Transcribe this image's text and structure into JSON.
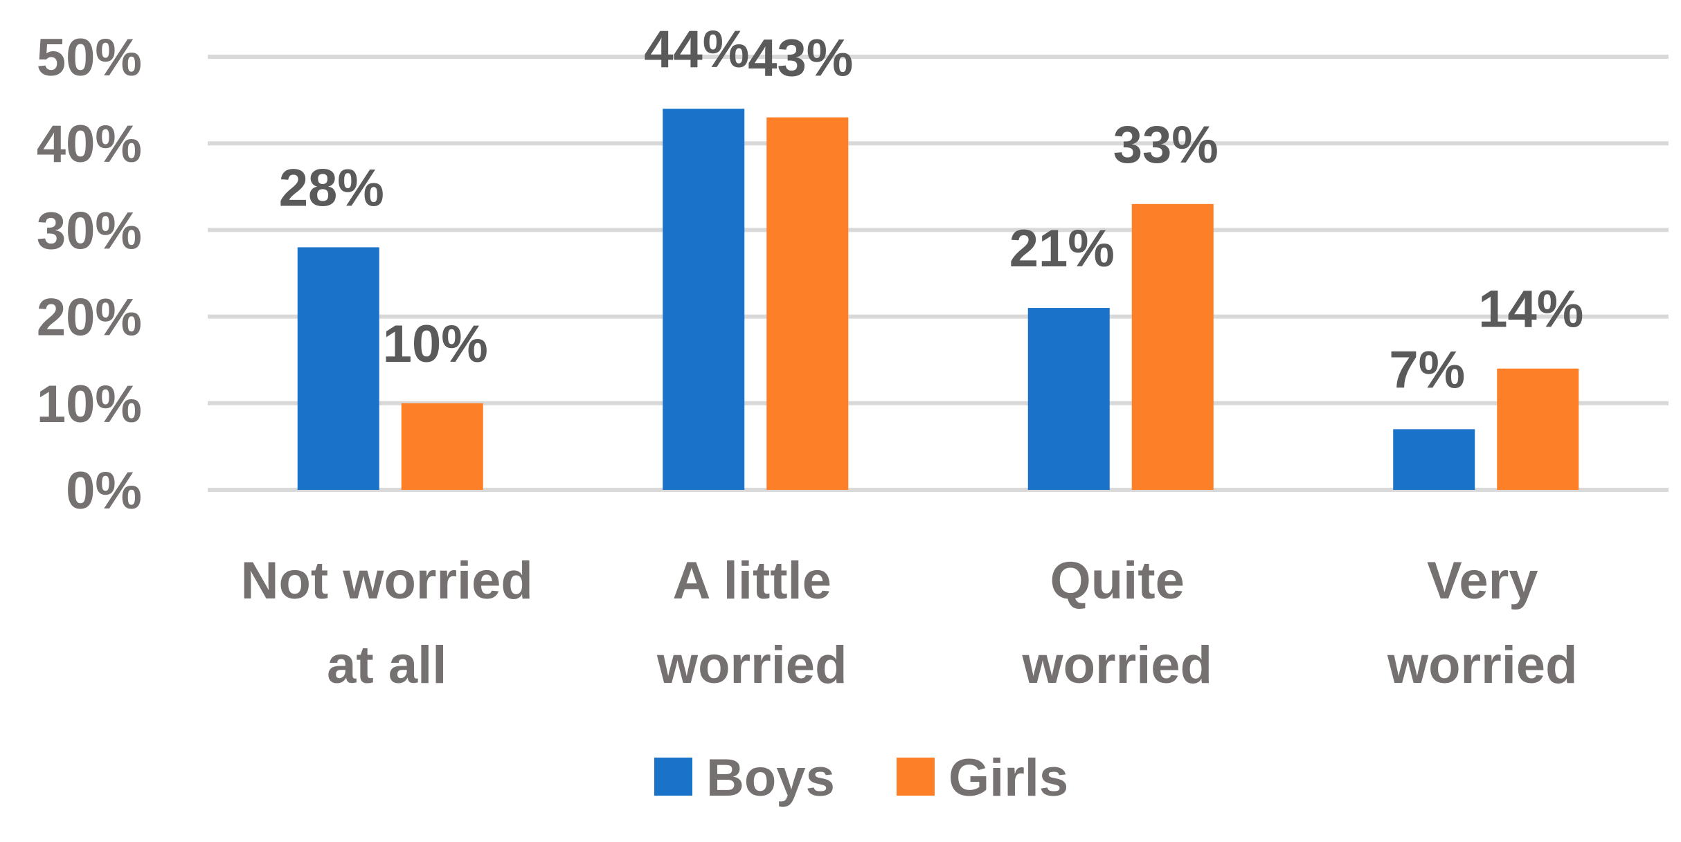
{
  "chart_data": {
    "type": "bar",
    "categories": [
      [
        "Not worried",
        "at all"
      ],
      [
        "A little",
        "worried"
      ],
      [
        "Quite",
        "worried"
      ],
      [
        "Very",
        "worried"
      ]
    ],
    "series": [
      {
        "name": "Boys",
        "color": "#1a73c8",
        "values": [
          28,
          44,
          21,
          7
        ],
        "labels": [
          "28%",
          "44%",
          "21%",
          "7%"
        ]
      },
      {
        "name": "Girls",
        "color": "#fd7f27",
        "values": [
          10,
          43,
          33,
          14
        ],
        "labels": [
          "10%",
          "43%",
          "33%",
          "14%"
        ]
      }
    ],
    "yticks": [
      "0%",
      "10%",
      "20%",
      "30%",
      "40%",
      "50%"
    ],
    "ylim": [
      0,
      50
    ],
    "grid": true,
    "legend_position": "bottom"
  }
}
